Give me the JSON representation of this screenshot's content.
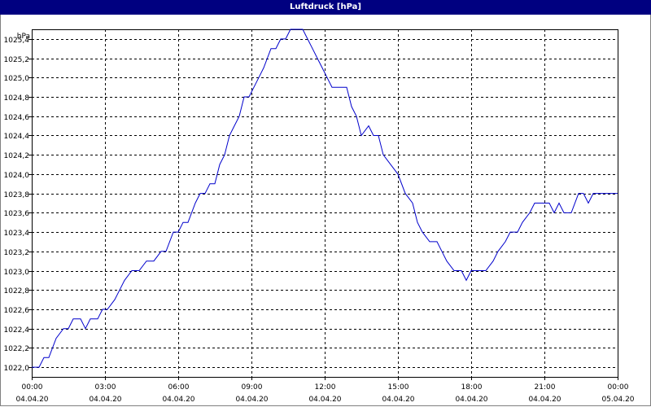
{
  "window": {
    "title": "Luftdruck [hPa]"
  },
  "colors": {
    "titlebar": "#000080",
    "line": "#0000cc",
    "grid": "#000000"
  },
  "chart_data": {
    "type": "line",
    "title": "Luftdruck [hPa]",
    "ylabel": "hPa",
    "xlabel": "",
    "x_unit": "hours",
    "xlim": [
      0,
      24
    ],
    "ylim": [
      1021.9,
      1025.5
    ],
    "grid": true,
    "yticks": [
      1022.0,
      1022.2,
      1022.4,
      1022.6,
      1022.8,
      1023.0,
      1023.2,
      1023.4,
      1023.6,
      1023.8,
      1024.0,
      1024.2,
      1024.4,
      1024.6,
      1024.8,
      1025.0,
      1025.2,
      1025.4
    ],
    "ytick_labels": [
      "1022,0",
      "1022,2",
      "1022,4",
      "1022,6",
      "1022,8",
      "1023,0",
      "1023,2",
      "1023,4",
      "1023,6",
      "1023,8",
      "1024,0",
      "1024,2",
      "1024,4",
      "1024,6",
      "1024,8",
      "1025,0",
      "1025,2",
      "1025,4"
    ],
    "xticks": [
      {
        "x": 0,
        "time": "00:00",
        "date": "04.04.20"
      },
      {
        "x": 3,
        "time": "03:00",
        "date": "04.04.20"
      },
      {
        "x": 6,
        "time": "06:00",
        "date": "04.04.20"
      },
      {
        "x": 9,
        "time": "09:00",
        "date": "04.04.20"
      },
      {
        "x": 12,
        "time": "12:00",
        "date": "04.04.20"
      },
      {
        "x": 15,
        "time": "15:00",
        "date": "04.04.20"
      },
      {
        "x": 18,
        "time": "18:00",
        "date": "04.04.20"
      },
      {
        "x": 21,
        "time": "21:00",
        "date": "04.04.20"
      },
      {
        "x": 24,
        "time": "00:00",
        "date": "05.04.20"
      }
    ],
    "series": [
      {
        "x": [
          0,
          0.3,
          0.5,
          0.7,
          1,
          1.3,
          1.5,
          1.7,
          2,
          2.2,
          2.4,
          2.7,
          2.9,
          3.1,
          3.4,
          3.6,
          3.8,
          4.1,
          4.4,
          4.7,
          5.0,
          5.3,
          5.5,
          5.8,
          6.0,
          6.2,
          6.4,
          6.7,
          6.9,
          7.1,
          7.3,
          7.5,
          7.7,
          7.9,
          8.1,
          8.3,
          8.5,
          8.7,
          8.9,
          9.1,
          9.3,
          9.5,
          9.8,
          10.0,
          10.2,
          10.4,
          10.6,
          10.8,
          11.1,
          11.3,
          11.5,
          11.7,
          11.9,
          12.1,
          12.3,
          12.6,
          12.9,
          13.1,
          13.3,
          13.5,
          13.8,
          14.0,
          14.2,
          14.4,
          14.7,
          15.0,
          15.3,
          15.6,
          15.8,
          16.0,
          16.3,
          16.6,
          16.8,
          17.0,
          17.3,
          17.6,
          17.8,
          18.0,
          18.3,
          18.6,
          18.9,
          19.1,
          19.4,
          19.6,
          19.9,
          20.1,
          20.4,
          20.6,
          20.9,
          21.2,
          21.4,
          21.6,
          21.8,
          22.1,
          22.4,
          22.6,
          22.8,
          23.0,
          23.3,
          24.0
        ],
        "y": [
          1022.0,
          1022.0,
          1022.1,
          1022.1,
          1022.3,
          1022.4,
          1022.4,
          1022.5,
          1022.5,
          1022.4,
          1022.5,
          1022.5,
          1022.6,
          1022.6,
          1022.7,
          1022.8,
          1022.9,
          1023.0,
          1023.0,
          1023.1,
          1023.1,
          1023.2,
          1023.2,
          1023.4,
          1023.4,
          1023.5,
          1023.5,
          1023.7,
          1023.8,
          1023.8,
          1023.9,
          1023.9,
          1024.1,
          1024.2,
          1024.4,
          1024.5,
          1024.6,
          1024.8,
          1024.8,
          1024.9,
          1025.0,
          1025.1,
          1025.3,
          1025.3,
          1025.4,
          1025.4,
          1025.5,
          1025.5,
          1025.5,
          1025.4,
          1025.3,
          1025.2,
          1025.1,
          1025.0,
          1024.9,
          1024.9,
          1024.9,
          1024.7,
          1024.6,
          1024.4,
          1024.5,
          1024.4,
          1024.4,
          1024.2,
          1024.1,
          1024.0,
          1023.8,
          1023.7,
          1023.5,
          1023.4,
          1023.3,
          1023.3,
          1023.2,
          1023.1,
          1023.0,
          1023.0,
          1022.9,
          1023.0,
          1023.0,
          1023.0,
          1023.1,
          1023.2,
          1023.3,
          1023.4,
          1023.4,
          1023.5,
          1023.6,
          1023.7,
          1023.7,
          1023.7,
          1023.6,
          1023.7,
          1023.6,
          1023.6,
          1023.8,
          1023.8,
          1023.7,
          1023.8,
          1023.8,
          1023.8
        ]
      }
    ]
  }
}
